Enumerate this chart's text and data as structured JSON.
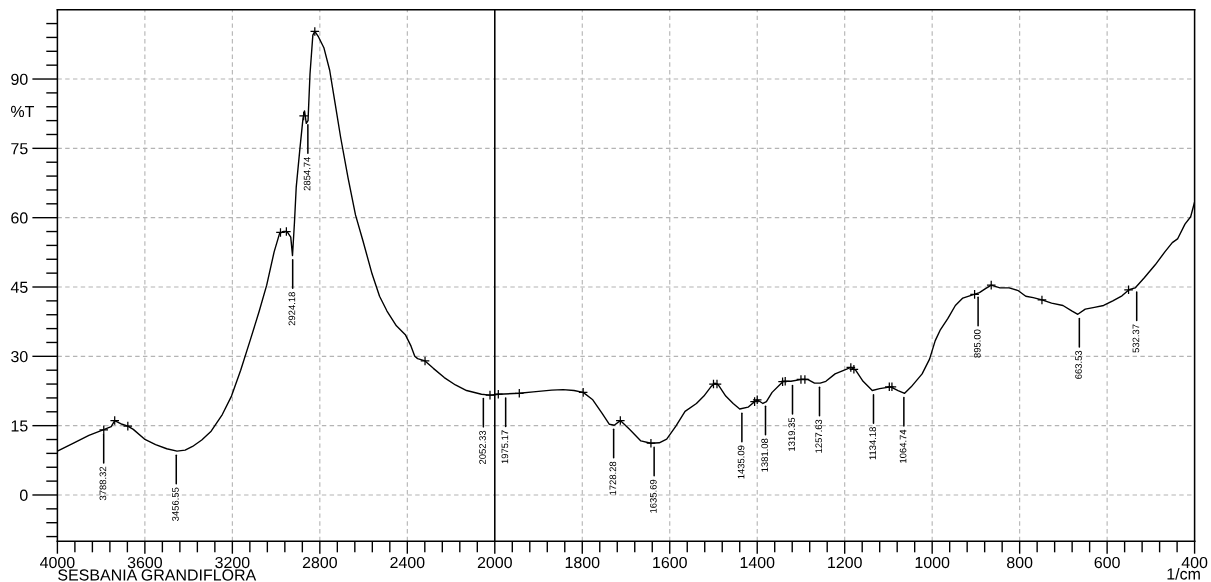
{
  "chart_data": [
    {
      "type": "line",
      "title": "SESBANIA GRANDIFLORA",
      "ylabel": "%T",
      "series": [
        {
          "color": "#000000",
          "x": [
            4000,
            3924,
            3856,
            3797,
            3754,
            3738,
            3704,
            3678,
            3653,
            3602,
            3551,
            3500,
            3453,
            3416,
            3382,
            3340,
            3297,
            3246,
            3204,
            3162,
            3119,
            3077,
            3043,
            3009,
            2984,
            2967,
            2950,
            2933,
            2925,
            2916,
            2908,
            2891,
            2877,
            2870,
            2862,
            2854,
            2845,
            2832,
            2823,
            2806,
            2781,
            2755,
            2730,
            2705,
            2671,
            2637,
            2603,
            2561,
            2527,
            2493,
            2450,
            2408,
            2383,
            2366,
            2353,
            2319,
            2281,
            2231,
            2180,
            2129,
            2061,
            2022,
            2000
          ],
          "values": [
            9.5,
            11.3,
            12.9,
            14.0,
            14.8,
            16.1,
            15.3,
            14.9,
            14.2,
            12.1,
            10.9,
            10.0,
            9.5,
            9.7,
            10.5,
            11.9,
            13.8,
            17.4,
            21.4,
            27.0,
            33.4,
            39.8,
            45.4,
            52.6,
            56.6,
            57.0,
            57.0,
            55.8,
            51.8,
            59.0,
            66.6,
            75.0,
            81.5,
            83.1,
            80.4,
            81.0,
            91.1,
            99.5,
            100.3,
            99.1,
            96.7,
            91.9,
            84.7,
            77.4,
            68.6,
            60.6,
            55.0,
            47.8,
            43.0,
            39.8,
            36.6,
            34.6,
            32.2,
            30.0,
            29.5,
            29.0,
            27.4,
            25.4,
            23.8,
            22.6,
            21.8,
            21.6,
            21.7
          ]
        },
        {
          "type": "scatter",
          "marker": "cross",
          "color": "#000000",
          "x": [
            3788,
            3738,
            3678,
            2980,
            2953,
            2874,
            2823,
            2319,
            2022
          ],
          "values": [
            14.1,
            16.1,
            14.9,
            56.8,
            57.0,
            82.0,
            100.3,
            29.0,
            21.6
          ]
        }
      ],
      "xlim": [
        4000,
        2000
      ],
      "ylim": [
        -10,
        105
      ],
      "xticks": [
        4000,
        3600,
        3200,
        2800,
        2400,
        2000,
        {
          "value": 3920,
          "label": null
        },
        {
          "value": 3840,
          "label": null
        },
        {
          "value": 3760,
          "label": null
        },
        {
          "value": 3680,
          "label": null
        },
        {
          "value": 3520,
          "label": null
        },
        {
          "value": 3440,
          "label": null
        },
        {
          "value": 3360,
          "label": null
        },
        {
          "value": 3280,
          "label": null
        },
        {
          "value": 3120,
          "label": null
        },
        {
          "value": 3040,
          "label": null
        },
        {
          "value": 2960,
          "label": null
        },
        {
          "value": 2880,
          "label": null
        },
        {
          "value": 2720,
          "label": null
        },
        {
          "value": 2640,
          "label": null
        },
        {
          "value": 2560,
          "label": null
        },
        {
          "value": 2480,
          "label": null
        },
        {
          "value": 2320,
          "label": null
        },
        {
          "value": 2240,
          "label": null
        },
        {
          "value": 2160,
          "label": null
        },
        {
          "value": 2080,
          "label": null
        }
      ],
      "yticks": [
        0,
        15,
        30,
        45,
        60,
        75,
        90,
        {
          "value": -9,
          "label": null
        },
        {
          "value": -6,
          "label": null
        },
        {
          "value": -3,
          "label": null
        },
        {
          "value": 3,
          "label": null
        },
        {
          "value": 6,
          "label": null
        },
        {
          "value": 9,
          "label": null
        },
        {
          "value": 12,
          "label": null
        },
        {
          "value": 18,
          "label": null
        },
        {
          "value": 21,
          "label": null
        },
        {
          "value": 24,
          "label": null
        },
        {
          "value": 27,
          "label": null
        },
        {
          "value": 33,
          "label": null
        },
        {
          "value": 36,
          "label": null
        },
        {
          "value": 39,
          "label": null
        },
        {
          "value": 42,
          "label": null
        },
        {
          "value": 48,
          "label": null
        },
        {
          "value": 51,
          "label": null
        },
        {
          "value": 54,
          "label": null
        },
        {
          "value": 57,
          "label": null
        },
        {
          "value": 63,
          "label": null
        },
        {
          "value": 66,
          "label": null
        },
        {
          "value": 69,
          "label": null
        },
        {
          "value": 72,
          "label": null
        },
        {
          "value": 78,
          "label": null
        },
        {
          "value": 81,
          "label": null
        },
        {
          "value": 84,
          "label": null
        },
        {
          "value": 87,
          "label": null
        },
        {
          "value": 93,
          "label": null
        },
        {
          "value": 96,
          "label": null
        },
        {
          "value": 99,
          "label": null
        },
        {
          "value": 102,
          "label": null
        }
      ],
      "grid": true,
      "annotations": [
        {
          "text": "3788.32",
          "x": 3788.32,
          "y": 14.0
        },
        {
          "text": "3456.55",
          "x": 3456.55,
          "y": 9.5
        },
        {
          "text": "2924.18",
          "x": 2924.18,
          "y": 51.8
        },
        {
          "text": "2854.74",
          "x": 2854.74,
          "y": 81.0
        },
        {
          "text": "2052.33",
          "x": 2052.33,
          "y": 21.8
        }
      ]
    },
    {
      "type": "line",
      "xlabel": "1/cm",
      "tick_labels": "x",
      "series": [
        {
          "color": "#000000",
          "x": [
            2000,
            1992,
            1944,
            1912,
            1870,
            1844,
            1819,
            1798,
            1776,
            1755,
            1738,
            1727,
            1713,
            1692,
            1666,
            1643,
            1624,
            1607,
            1586,
            1565,
            1539,
            1522,
            1506,
            1497,
            1489,
            1472,
            1455,
            1440,
            1421,
            1406,
            1400,
            1387,
            1379,
            1366,
            1349,
            1340,
            1323,
            1298,
            1285,
            1269,
            1256,
            1243,
            1222,
            1201,
            1186,
            1175,
            1158,
            1137,
            1120,
            1095,
            1078,
            1063,
            1048,
            1023,
            1006,
            993,
            981,
            964,
            947,
            930,
            904,
            892,
            879,
            865,
            845,
            824,
            803,
            786,
            769,
            749,
            727,
            701,
            680,
            667,
            650,
            629,
            608,
            587,
            566,
            550,
            536,
            515,
            490,
            468,
            451,
            439,
            422,
            409,
            400
          ],
          "values": [
            21.7,
            21.8,
            22.0,
            22.3,
            22.7,
            22.8,
            22.6,
            22.2,
            20.6,
            17.7,
            15.3,
            15.1,
            16.1,
            14.2,
            11.7,
            11.2,
            11.3,
            12.1,
            14.9,
            18.1,
            19.8,
            21.4,
            23.4,
            24.2,
            23.8,
            21.4,
            19.8,
            18.6,
            19.0,
            20.2,
            20.6,
            19.8,
            20.2,
            22.2,
            23.8,
            24.6,
            24.6,
            25.0,
            25.0,
            24.2,
            24.2,
            24.6,
            26.2,
            27.0,
            27.6,
            27.0,
            24.6,
            22.6,
            23.0,
            23.4,
            22.6,
            22.0,
            23.4,
            26.2,
            29.4,
            33.4,
            35.8,
            38.2,
            41.0,
            42.6,
            43.4,
            43.8,
            44.6,
            45.4,
            44.8,
            44.8,
            44.2,
            43.0,
            42.7,
            42.2,
            41.5,
            41.0,
            39.8,
            39.1,
            40.2,
            40.6,
            41.0,
            42.0,
            43.1,
            44.4,
            44.8,
            47.0,
            49.8,
            52.6,
            54.6,
            55.4,
            58.6,
            60.2,
            63.4
          ]
        },
        {
          "type": "scatter",
          "marker": "cross",
          "color": "#000000",
          "x": [
            1992,
            1944,
            1798,
            1713,
            1643,
            1500,
            1492,
            1406,
            1400,
            1342,
            1336,
            1300,
            1291,
            1186,
            1179,
            1098,
            1092,
            903,
            865,
            749,
            551
          ],
          "values": [
            21.8,
            22.0,
            22.2,
            16.1,
            11.2,
            24.0,
            24.0,
            20.2,
            20.6,
            24.5,
            24.6,
            25.0,
            25.0,
            27.6,
            27.2,
            23.4,
            23.4,
            43.4,
            45.4,
            42.2,
            44.4
          ]
        }
      ],
      "xlim": [
        2000,
        400
      ],
      "ylim": [
        -10,
        105
      ],
      "xticks": [
        1800,
        1600,
        1400,
        1200,
        1000,
        800,
        600,
        400,
        {
          "value": 1960,
          "label": null
        },
        {
          "value": 1920,
          "label": null
        },
        {
          "value": 1880,
          "label": null
        },
        {
          "value": 1840,
          "label": null
        },
        {
          "value": 1760,
          "label": null
        },
        {
          "value": 1720,
          "label": null
        },
        {
          "value": 1680,
          "label": null
        },
        {
          "value": 1640,
          "label": null
        },
        {
          "value": 1560,
          "label": null
        },
        {
          "value": 1520,
          "label": null
        },
        {
          "value": 1480,
          "label": null
        },
        {
          "value": 1440,
          "label": null
        },
        {
          "value": 1360,
          "label": null
        },
        {
          "value": 1320,
          "label": null
        },
        {
          "value": 1280,
          "label": null
        },
        {
          "value": 1240,
          "label": null
        },
        {
          "value": 1160,
          "label": null
        },
        {
          "value": 1120,
          "label": null
        },
        {
          "value": 1080,
          "label": null
        },
        {
          "value": 1040,
          "label": null
        },
        {
          "value": 960,
          "label": null
        },
        {
          "value": 920,
          "label": null
        },
        {
          "value": 880,
          "label": null
        },
        {
          "value": 840,
          "label": null
        },
        {
          "value": 760,
          "label": null
        },
        {
          "value": 720,
          "label": null
        },
        {
          "value": 680,
          "label": null
        },
        {
          "value": 640,
          "label": null
        },
        {
          "value": 560,
          "label": null
        },
        {
          "value": 520,
          "label": null
        },
        {
          "value": 480,
          "label": null
        },
        {
          "value": 440,
          "label": null
        }
      ],
      "yticks": [
        0,
        15,
        30,
        45,
        60,
        75,
        90
      ],
      "grid": true,
      "annotations": [
        {
          "text": "1975.17",
          "x": 1975.17,
          "y": 21.9
        },
        {
          "text": "1728.28",
          "x": 1728.28,
          "y": 15.1
        },
        {
          "text": "1635.69",
          "x": 1635.69,
          "y": 11.2
        },
        {
          "text": "1435.09",
          "x": 1435.09,
          "y": 18.6
        },
        {
          "text": "1381.08",
          "x": 1381.08,
          "y": 20.1
        },
        {
          "text": "1319.35",
          "x": 1319.35,
          "y": 24.6
        },
        {
          "text": "1257.63",
          "x": 1257.63,
          "y": 24.2
        },
        {
          "text": "1134.18",
          "x": 1134.18,
          "y": 22.6
        },
        {
          "text": "1064.74",
          "x": 1064.74,
          "y": 22.0
        },
        {
          "text": "895.00",
          "x": 895.0,
          "y": 43.7
        },
        {
          "text": "663.53",
          "x": 663.53,
          "y": 39.1
        },
        {
          "text": "532.37",
          "x": 532.37,
          "y": 44.8
        }
      ]
    }
  ]
}
